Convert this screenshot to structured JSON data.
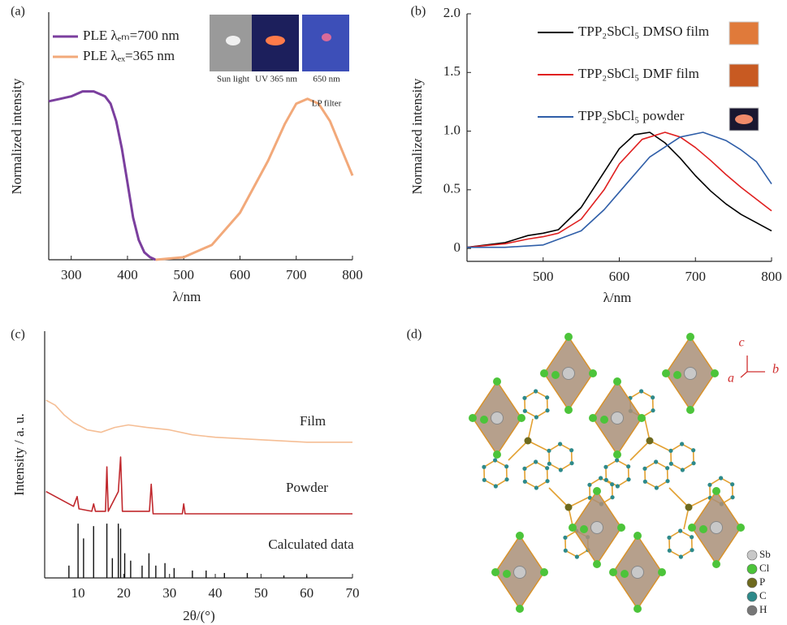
{
  "chart_data": [
    {
      "type": "line",
      "label": "(a)",
      "xlabel": "λ/nm",
      "ylabel": "Normalized intensity",
      "xlim": [
        260,
        800
      ],
      "ylim": [
        0,
        1
      ],
      "xticks": [
        300,
        400,
        500,
        600,
        700,
        800
      ],
      "inset_labels": [
        "Sun light",
        "UV 365 nm",
        "650 nm",
        "LP filter"
      ],
      "series": [
        {
          "name": "PLE  λₑₘ=700 nm",
          "color": "#7b3f9e",
          "x": [
            260,
            280,
            300,
            320,
            340,
            360,
            370,
            380,
            390,
            400,
            410,
            420,
            430,
            440,
            450
          ],
          "values": [
            0.64,
            0.65,
            0.66,
            0.68,
            0.68,
            0.66,
            0.63,
            0.56,
            0.45,
            0.31,
            0.17,
            0.08,
            0.03,
            0.01,
            0
          ]
        },
        {
          "name": "PLE  λₑₓ=365 nm",
          "color": "#f2a97a",
          "x": [
            450,
            500,
            550,
            600,
            650,
            680,
            700,
            720,
            740,
            760,
            780,
            800
          ],
          "values": [
            0,
            0.01,
            0.06,
            0.19,
            0.4,
            0.55,
            0.63,
            0.65,
            0.63,
            0.56,
            0.45,
            0.34
          ]
        }
      ]
    },
    {
      "type": "line",
      "label": "(b)",
      "xlabel": "λ/nm",
      "ylabel": "Normalized intensity",
      "xlim": [
        400,
        800
      ],
      "ylim": [
        -0.11,
        2.0
      ],
      "xticks": [
        500,
        600,
        700,
        800
      ],
      "yticks": [
        0,
        0.5,
        {
          "value": 1,
          "label": "1.0"
        },
        1.5,
        {
          "value": 2,
          "label": "2.0"
        }
      ],
      "series": [
        {
          "name": "TPP₂SbCl₅ DMSO film",
          "color": "#000000",
          "x": [
            400,
            450,
            480,
            500,
            520,
            550,
            580,
            600,
            620,
            640,
            660,
            680,
            700,
            720,
            740,
            760,
            780,
            800
          ],
          "values": [
            0.01,
            0.05,
            0.11,
            0.13,
            0.16,
            0.35,
            0.65,
            0.85,
            0.97,
            0.99,
            0.9,
            0.77,
            0.62,
            0.49,
            0.38,
            0.29,
            0.22,
            0.15
          ]
        },
        {
          "name": "TPP₂SbCl₅ DMF film",
          "color": "#e02020",
          "x": [
            400,
            450,
            480,
            500,
            520,
            550,
            580,
            600,
            630,
            660,
            680,
            700,
            720,
            740,
            760,
            780,
            800
          ],
          "values": [
            0.01,
            0.04,
            0.08,
            0.1,
            0.13,
            0.25,
            0.5,
            0.72,
            0.93,
            0.99,
            0.95,
            0.86,
            0.75,
            0.63,
            0.52,
            0.42,
            0.32
          ]
        },
        {
          "name": "TPP₂SbCl₅ powder",
          "color": "#2f5ea8",
          "x": [
            400,
            450,
            500,
            550,
            580,
            600,
            640,
            680,
            710,
            740,
            760,
            780,
            800
          ],
          "values": [
            0.01,
            0.01,
            0.03,
            0.15,
            0.33,
            0.48,
            0.78,
            0.95,
            0.99,
            0.92,
            0.84,
            0.74,
            0.55
          ]
        }
      ]
    },
    {
      "type": "line",
      "label": "(c)",
      "xlabel": "2θ/(°)",
      "ylabel": "Intensity / a. u.",
      "xlim": [
        2.7,
        70
      ],
      "ylim": [
        0,
        1
      ],
      "xticks": [
        10,
        20,
        30,
        40,
        50,
        60,
        70
      ],
      "series": [
        {
          "name": "Film",
          "color": "#f5be95",
          "x": [
            3,
            5,
            7,
            9,
            12,
            15,
            18,
            21,
            25,
            30,
            35,
            40,
            50,
            60,
            70
          ],
          "values": [
            0.72,
            0.7,
            0.66,
            0.63,
            0.6,
            0.59,
            0.61,
            0.62,
            0.61,
            0.6,
            0.58,
            0.57,
            0.56,
            0.55,
            0.55
          ]
        },
        {
          "name": "Powder",
          "color": "#c0282d",
          "x": [
            3,
            6,
            9,
            9.8,
            10.2,
            13,
            13.4,
            13.8,
            16,
            16.3,
            16.6,
            18.8,
            19.3,
            19.7,
            25.6,
            26,
            26.4,
            32.8,
            33.1,
            33.4,
            40,
            55,
            70
          ],
          "values": [
            0.35,
            0.32,
            0.29,
            0.33,
            0.28,
            0.27,
            0.3,
            0.27,
            0.27,
            0.45,
            0.27,
            0.35,
            0.49,
            0.27,
            0.27,
            0.38,
            0.26,
            0.26,
            0.3,
            0.26,
            0.26,
            0.26,
            0.26
          ]
        },
        {
          "name": "Calculated data",
          "color": "#111111",
          "style": "stick",
          "x": [
            8,
            10,
            11.2,
            13.4,
            16.3,
            17.5,
            18.8,
            19.3,
            20.2,
            21.5,
            24,
            25.5,
            27,
            29,
            31,
            35,
            38,
            42,
            47,
            55,
            60
          ],
          "values": [
            0.05,
            0.22,
            0.16,
            0.21,
            0.22,
            0.08,
            0.22,
            0.2,
            0.1,
            0.07,
            0.05,
            0.1,
            0.05,
            0.06,
            0.04,
            0.03,
            0.03,
            0.02,
            0.02,
            0.01,
            0.01
          ]
        }
      ]
    }
  ],
  "panel_d": {
    "label": "(d)",
    "axes": [
      "c",
      "a",
      "b"
    ],
    "legend": [
      "Sb",
      "Cl",
      "P",
      "C",
      "H"
    ]
  }
}
